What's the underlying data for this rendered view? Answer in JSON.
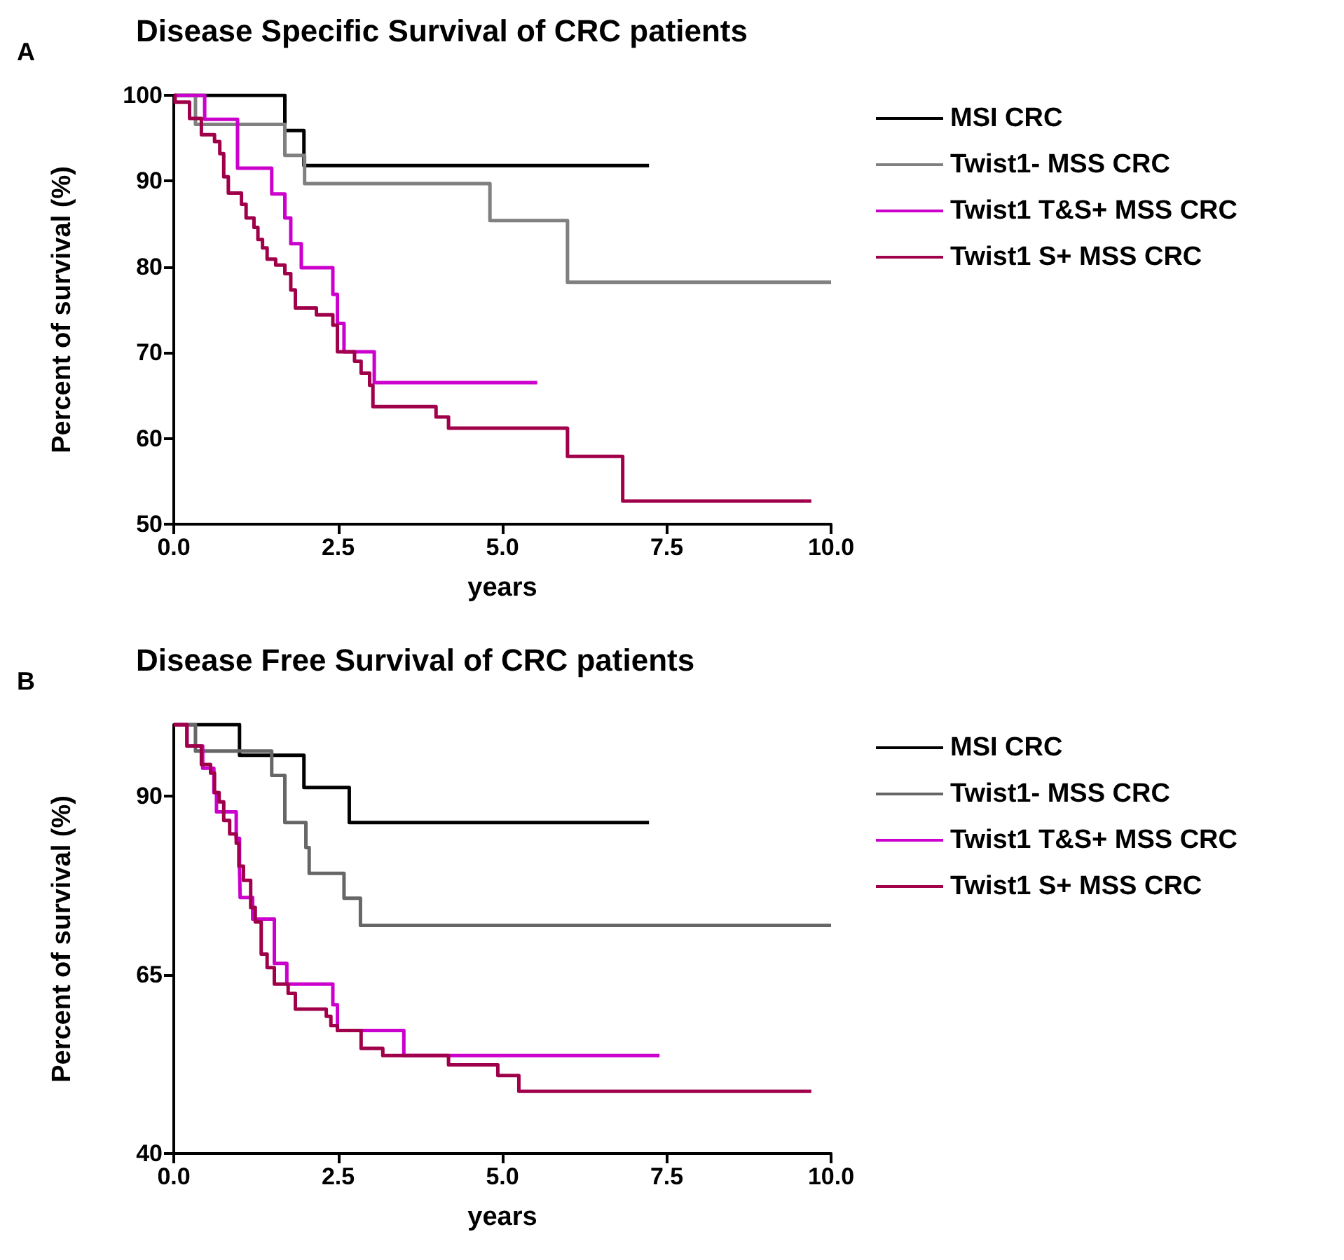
{
  "chart_data": [
    {
      "type": "step",
      "title": "Disease Specific Survival of CRC patients",
      "annotations": [
        "A"
      ],
      "xlabel": "years",
      "ylabel": "Percent of survival (%)",
      "xlim": [
        0,
        10
      ],
      "xticks": [
        {
          "value": 0,
          "label": "0.0"
        },
        {
          "value": 2.5,
          "label": "2.5"
        },
        {
          "value": 5,
          "label": "5.0"
        },
        {
          "value": 7.5,
          "label": "7.5"
        },
        {
          "value": 10,
          "label": "10.0"
        }
      ],
      "ylim": [
        50,
        100
      ],
      "yticks": [
        50,
        60,
        70,
        80,
        90,
        100
      ],
      "grid": false,
      "legend": "top right",
      "marker": "none",
      "line_style": "solid",
      "series": [
        {
          "name": "MSI CRC",
          "color": "#000000",
          "x": [
            0,
            1.69,
            1.98,
            7.23
          ],
          "values": [
            100,
            95.9,
            91.8,
            91.8
          ]
        },
        {
          "name": "Twist1- MSS CRC",
          "color": "#808080",
          "x": [
            0,
            0.33,
            1.69,
            1.99,
            4.81,
            5.99,
            10
          ],
          "values": [
            100,
            96.6,
            93.0,
            89.7,
            85.4,
            78.2,
            78.2
          ]
        },
        {
          "name": "Twist1 T&S+ MSS CRC",
          "color": "#cc00cc",
          "x": [
            0,
            0.47,
            0.97,
            1.49,
            1.69,
            1.78,
            1.94,
            2.42,
            2.49,
            2.59,
            3.05,
            5.53
          ],
          "values": [
            100,
            97.2,
            91.5,
            88.5,
            85.7,
            82.7,
            79.9,
            76.8,
            73.4,
            70.1,
            66.5,
            66.5
          ]
        },
        {
          "name": "Twist1 S+ MSS CRC",
          "color": "#a0004a",
          "x": [
            0,
            0.02,
            0.24,
            0.42,
            0.62,
            0.7,
            0.76,
            0.83,
            1.03,
            1.1,
            1.22,
            1.28,
            1.35,
            1.42,
            1.55,
            1.69,
            1.78,
            1.85,
            2.17,
            2.42,
            2.49,
            2.75,
            2.85,
            2.98,
            3.03,
            3.99,
            4.18,
            5.99,
            6.83,
            9.7
          ],
          "values": [
            100,
            99.2,
            97.3,
            95.4,
            94.6,
            93.2,
            90.5,
            88.6,
            87.3,
            85.7,
            84.6,
            83.2,
            82.2,
            80.9,
            80.2,
            79.2,
            77.3,
            75.2,
            74.4,
            73.2,
            70.1,
            69.0,
            67.6,
            66.2,
            63.7,
            62.5,
            61.2,
            57.9,
            52.7,
            52.7
          ]
        }
      ]
    },
    {
      "type": "step",
      "title": "Disease Free Survival of CRC patients",
      "annotations": [
        "B"
      ],
      "xlabel": "years",
      "ylabel": "Percent of survival (%)",
      "xlim": [
        0,
        10
      ],
      "xticks": [
        {
          "value": 0,
          "label": "0.0"
        },
        {
          "value": 2.5,
          "label": "2.5"
        },
        {
          "value": 5,
          "label": "5.0"
        },
        {
          "value": 7.5,
          "label": "7.5"
        },
        {
          "value": 10,
          "label": "10.0"
        }
      ],
      "ylim": [
        40,
        100
      ],
      "yticks": [
        40,
        65,
        90
      ],
      "grid": false,
      "legend": "top right",
      "marker": "none",
      "line_style": "solid",
      "series": [
        {
          "name": "MSI CRC",
          "color": "#000000",
          "x": [
            0,
            1.0,
            1.98,
            2.67,
            7.23
          ],
          "values": [
            100,
            95.7,
            91.2,
            86.3,
            86.3
          ]
        },
        {
          "name": "Twist1- MSS CRC",
          "color": "#666666",
          "x": [
            0,
            0.33,
            1.49,
            1.69,
            2.01,
            2.06,
            2.59,
            2.84,
            10
          ],
          "values": [
            100,
            96.3,
            92.9,
            86.3,
            82.8,
            79.2,
            75.7,
            71.9,
            71.9
          ]
        },
        {
          "name": "Twist1 T&S+ MSS CRC",
          "color": "#cc00cc",
          "x": [
            0,
            0.2,
            0.44,
            0.61,
            0.65,
            0.95,
            1.0,
            1.01,
            1.2,
            1.53,
            1.72,
            2.42,
            2.49,
            3.5,
            7.39
          ],
          "values": [
            100,
            97.0,
            93.9,
            90.5,
            87.8,
            84.1,
            79.9,
            75.8,
            72.8,
            66.6,
            63.7,
            60.8,
            57.2,
            53.7,
            53.7
          ]
        },
        {
          "name": "Twist1 S+ MSS CRC",
          "color": "#a0004a",
          "x": [
            0,
            0.2,
            0.42,
            0.56,
            0.62,
            0.69,
            0.76,
            0.85,
            0.95,
            0.99,
            1.06,
            1.17,
            1.24,
            1.33,
            1.42,
            1.53,
            1.74,
            1.85,
            2.32,
            2.39,
            2.49,
            2.85,
            3.18,
            4.18,
            4.93,
            5.25,
            9.7
          ],
          "values": [
            100,
            97.0,
            94.4,
            93.2,
            90.5,
            89.2,
            86.6,
            84.7,
            83.4,
            80.2,
            78.2,
            74.4,
            72.4,
            67.9,
            66.0,
            63.7,
            62.4,
            60.2,
            59.2,
            57.9,
            57.2,
            54.7,
            53.7,
            52.4,
            50.9,
            48.7,
            48.7
          ]
        }
      ]
    }
  ]
}
